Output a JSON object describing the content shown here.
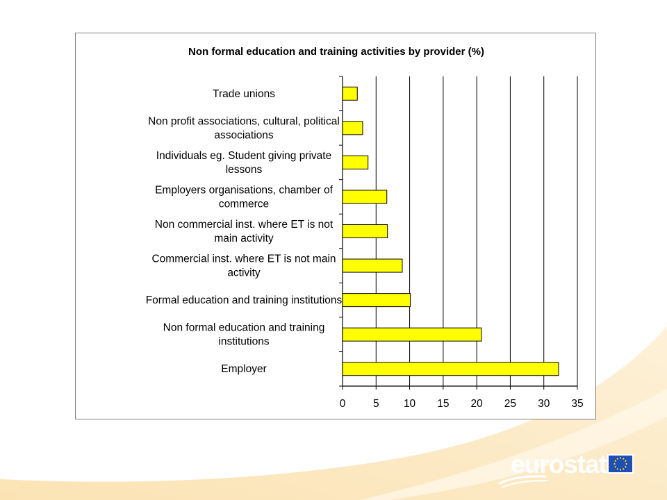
{
  "chart_data": {
    "type": "bar",
    "orientation": "horizontal",
    "title": "Non formal education and training activities by provider (%)",
    "categories": [
      "Trade unions",
      "Non profit associations, cultural, political associations",
      "Individuals eg. Student giving private lessons",
      "Employers organisations, chamber of commerce",
      "Non commercial inst. where ET is not main activity",
      "Commercial inst. where ET is not main activity",
      "Formal education and training institutions",
      "Non formal education and training institutions",
      "Employer"
    ],
    "category_label_lines": [
      [
        "Trade unions"
      ],
      [
        "Non profit associations, cultural, political",
        "associations"
      ],
      [
        "Individuals eg. Student giving private",
        "lessons"
      ],
      [
        "Employers organisations, chamber of",
        "commerce"
      ],
      [
        "Non commercial inst. where ET is not",
        "main activity"
      ],
      [
        "Commercial inst. where ET is not main",
        "activity"
      ],
      [
        "Formal education and training institutions"
      ],
      [
        "Non formal education and training",
        "institutions"
      ],
      [
        "Employer"
      ]
    ],
    "values": [
      2.2,
      3.0,
      3.8,
      6.6,
      6.7,
      8.9,
      10.1,
      20.7,
      32.2
    ],
    "xlim": [
      0,
      35
    ],
    "xticks": [
      "0",
      "5",
      "10",
      "15",
      "20",
      "25",
      "30",
      "35"
    ],
    "gridlines": "vertical",
    "bar_color": "#ffff00",
    "legend": "none"
  },
  "branding": {
    "logo_text": "eurostat",
    "flag": "eu-flag"
  }
}
